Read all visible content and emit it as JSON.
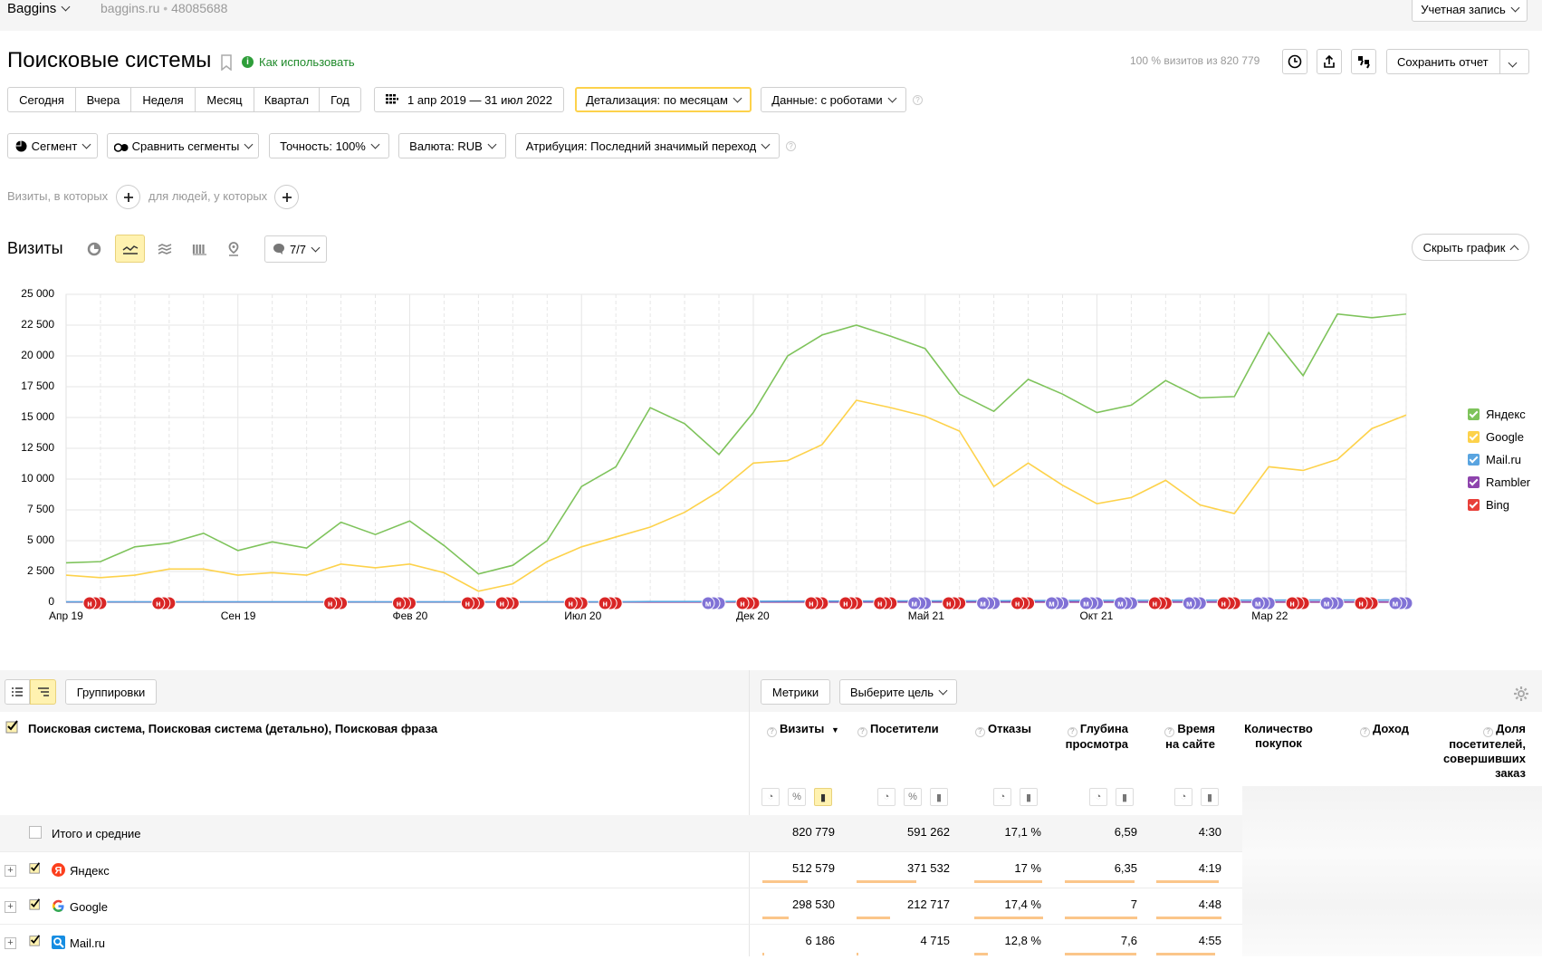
{
  "topbar": {
    "counter_name": "Baggins",
    "site": "baggins.ru",
    "counter_id": "48085688",
    "account": "Учетная запись"
  },
  "header": {
    "title": "Поисковые системы",
    "how_to": "Как использовать",
    "visits_share": "100 % визитов из 820 779",
    "save_report": "Сохранить отчет"
  },
  "periods": [
    "Сегодня",
    "Вчера",
    "Неделя",
    "Месяц",
    "Квартал",
    "Год"
  ],
  "date_range": "1 апр 2019 — 31 июл 2022",
  "detail": "Детализация: по месяцам",
  "data_mode": "Данные: с роботами",
  "filters": {
    "segment": "Сегмент",
    "compare": "Сравнить сегменты",
    "accuracy": "Точность: 100%",
    "currency": "Валюта: RUB",
    "attribution": "Атрибуция: Последний значимый переход"
  },
  "conditions": {
    "visits": "Визиты, в которых",
    "people": "для людей, у которых"
  },
  "chart_header": {
    "metric": "Визиты",
    "notes": "7/7",
    "hide": "Скрыть график"
  },
  "colors": {
    "yandex": "#7ec35b",
    "google": "#fdd24b",
    "mailru": "#59a4e0",
    "rambler": "#8e44ad",
    "bing": "#e8403a",
    "accent_yellow": "#fff2b0",
    "note_red": "#d92626",
    "note_purple": "#8172d6"
  },
  "chart_data": {
    "type": "line",
    "y_ticks": [
      "25 000",
      "22 500",
      "20 000",
      "17 500",
      "15 000",
      "12 500",
      "10 000",
      "7 500",
      "5 000",
      "2 500",
      "0"
    ],
    "ylim": [
      0,
      25000
    ],
    "x_tick_labels": [
      "Апр 19",
      "Сен 19",
      "Фев 20",
      "Июл 20",
      "Дек 20",
      "Май 21",
      "Окт 21",
      "Мар 22"
    ],
    "x": [
      "2019-04",
      "2019-05",
      "2019-06",
      "2019-07",
      "2019-08",
      "2019-09",
      "2019-10",
      "2019-11",
      "2019-12",
      "2020-01",
      "2020-02",
      "2020-03",
      "2020-04",
      "2020-05",
      "2020-06",
      "2020-07",
      "2020-08",
      "2020-09",
      "2020-10",
      "2020-11",
      "2020-12",
      "2021-01",
      "2021-02",
      "2021-03",
      "2021-04",
      "2021-05",
      "2021-06",
      "2021-07",
      "2021-08",
      "2021-09",
      "2021-10",
      "2021-11",
      "2021-12",
      "2022-01",
      "2022-02",
      "2022-03",
      "2022-04",
      "2022-05",
      "2022-06",
      "2022-07"
    ],
    "series": [
      {
        "name": "Яндекс",
        "color": "#7ec35b",
        "values": [
          3200,
          3300,
          4500,
          4800,
          5600,
          4200,
          4900,
          4400,
          6500,
          5500,
          6600,
          4600,
          2300,
          3000,
          5000,
          9400,
          11000,
          15800,
          14500,
          12000,
          15400,
          20000,
          21700,
          22500,
          21600,
          20600,
          16900,
          15500,
          18100,
          16900,
          15400,
          16000,
          18000,
          16600,
          16700,
          21900,
          18400,
          23400,
          23100,
          23400
        ]
      },
      {
        "name": "Google",
        "color": "#fdd24b",
        "values": [
          2200,
          2000,
          2200,
          2700,
          2700,
          2200,
          2400,
          2200,
          3100,
          2800,
          3100,
          2400,
          900,
          1500,
          3300,
          4500,
          5300,
          6100,
          7300,
          9000,
          11300,
          11500,
          12800,
          16400,
          15800,
          15100,
          13900,
          9400,
          11300,
          9500,
          8000,
          8500,
          9900,
          7900,
          7200,
          11000,
          10700,
          11600,
          14100,
          15200
        ]
      },
      {
        "name": "Mail.ru",
        "color": "#59a4e0",
        "values": [
          30,
          30,
          30,
          30,
          30,
          30,
          30,
          30,
          30,
          30,
          30,
          30,
          30,
          30,
          30,
          30,
          30,
          60,
          60,
          60,
          80,
          90,
          100,
          100,
          110,
          110,
          120,
          120,
          130,
          140,
          150,
          150,
          160,
          160,
          170,
          170,
          180,
          180,
          180,
          190
        ]
      },
      {
        "name": "Rambler",
        "color": "#8e44ad",
        "values": [
          20,
          20,
          20,
          20,
          20,
          20,
          20,
          20,
          20,
          20,
          20,
          20,
          20,
          20,
          20,
          20,
          20,
          20,
          20,
          20,
          20,
          20,
          20,
          20,
          20,
          20,
          20,
          20,
          20,
          20,
          20,
          20,
          20,
          20,
          20,
          20,
          20,
          20,
          20,
          20
        ]
      },
      {
        "name": "Bing",
        "color": "#e8403a",
        "values": [
          10,
          10,
          10,
          10,
          10,
          10,
          10,
          10,
          10,
          10,
          10,
          10,
          10,
          10,
          10,
          10,
          10,
          10,
          10,
          10,
          10,
          10,
          10,
          10,
          10,
          10,
          10,
          10,
          10,
          10,
          10,
          10,
          10,
          10,
          10,
          10,
          10,
          10,
          10,
          10
        ]
      }
    ],
    "notes": [
      {
        "i": 1,
        "type": "н"
      },
      {
        "i": 3,
        "type": "н"
      },
      {
        "i": 8,
        "type": "н"
      },
      {
        "i": 10,
        "type": "н"
      },
      {
        "i": 12,
        "type": "н"
      },
      {
        "i": 13,
        "type": "н"
      },
      {
        "i": 15,
        "type": "н"
      },
      {
        "i": 16,
        "type": "н"
      },
      {
        "i": 19,
        "type": "м"
      },
      {
        "i": 20,
        "type": "н"
      },
      {
        "i": 22,
        "type": "н"
      },
      {
        "i": 23,
        "type": "н"
      },
      {
        "i": 24,
        "type": "н"
      },
      {
        "i": 25,
        "type": "м"
      },
      {
        "i": 26,
        "type": "н"
      },
      {
        "i": 27,
        "type": "м"
      },
      {
        "i": 28,
        "type": "н"
      },
      {
        "i": 29,
        "type": "м"
      },
      {
        "i": 30,
        "type": "м"
      },
      {
        "i": 31,
        "type": "м"
      },
      {
        "i": 32,
        "type": "н"
      },
      {
        "i": 33,
        "type": "м"
      },
      {
        "i": 34,
        "type": "н"
      },
      {
        "i": 35,
        "type": "м"
      },
      {
        "i": 36,
        "type": "н"
      },
      {
        "i": 37,
        "type": "м"
      },
      {
        "i": 38,
        "type": "н"
      },
      {
        "i": 39,
        "type": "м"
      }
    ],
    "legend_placement": "right",
    "grid": true
  },
  "table": {
    "groupings": "Группировки",
    "metrics": "Метрики",
    "goal": "Выберите цель",
    "dimension_header": "Поисковая система, Поисковая система (детально), Поисковая фраза",
    "columns": [
      {
        "label": "Визиты",
        "sort": "▼"
      },
      {
        "label": "Посетители"
      },
      {
        "label": "Отказы"
      },
      {
        "label": "Глубина просмотра"
      },
      {
        "label": "Время на сайте"
      },
      {
        "label": "Количество покупок"
      },
      {
        "label": "Доход"
      },
      {
        "label": "Доля посетителей, совершивших заказ"
      }
    ],
    "totals_label": "Итого и средние",
    "totals": [
      "820 779",
      "591 262",
      "17,1 %",
      "6,59",
      "4:30"
    ],
    "rows": [
      {
        "name": "Яндекс",
        "cells": [
          "512 579",
          "371 532",
          "17 %",
          "6,35",
          "4:19"
        ],
        "bars": [
          0.62,
          0.63,
          0.99,
          0.96,
          0.96
        ]
      },
      {
        "name": "Google",
        "cells": [
          "298 530",
          "212 717",
          "17,4 %",
          "7",
          "4:48"
        ],
        "bars": [
          0.36,
          0.36,
          1.0,
          1.0,
          1.0
        ]
      },
      {
        "name": "Mail.ru",
        "cells": [
          "6 186",
          "4 715",
          "12,8 %",
          "7,6",
          "4:55"
        ],
        "bars": [
          0.02,
          0.02,
          0.2,
          0.99,
          0.9
        ]
      }
    ]
  }
}
